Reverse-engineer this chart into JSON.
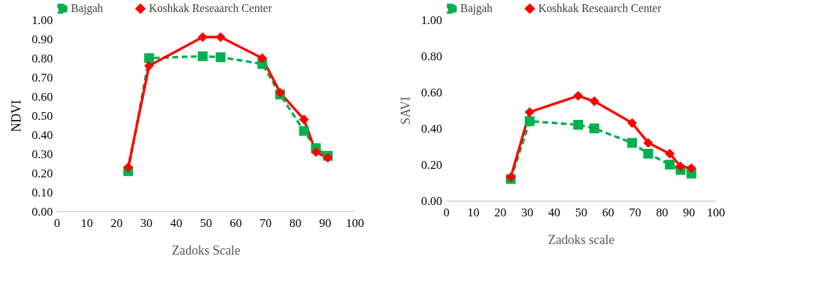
{
  "chart_data": [
    {
      "type": "line",
      "xlabel": "Zadoks Scale",
      "ylabel": "NDVI",
      "x": [
        24,
        31,
        49,
        55,
        69,
        75,
        83,
        87,
        91
      ],
      "legend": "top",
      "grid": false,
      "xlim": [
        0,
        100
      ],
      "xticks": [
        0,
        10,
        20,
        30,
        40,
        50,
        60,
        70,
        80,
        90,
        100
      ],
      "ylim": [
        0,
        1
      ],
      "yticks": [
        {
          "value": 0,
          "label": "0.00"
        },
        {
          "value": 0.1,
          "label": "0.10"
        },
        {
          "value": 0.2,
          "label": "0.20"
        },
        {
          "value": 0.3,
          "label": "0.30"
        },
        {
          "value": 0.4,
          "label": "0.40"
        },
        {
          "value": 0.5,
          "label": "0.50"
        },
        {
          "value": 0.6,
          "label": "0.60"
        },
        {
          "value": 0.7,
          "label": "0.70"
        },
        {
          "value": 0.8,
          "label": "0.80"
        },
        {
          "value": 0.9,
          "label": "0.90"
        },
        {
          "value": 1,
          "label": "1.00"
        }
      ],
      "series": [
        {
          "name": "Bajgah",
          "color": "#00b050",
          "marker": "square",
          "line_style": "dashed",
          "values": [
            0.21,
            0.8,
            0.81,
            0.805,
            0.77,
            0.61,
            0.42,
            0.33,
            0.29
          ]
        },
        {
          "name": "Koshkak Reseaarch Center",
          "color": "#ff0000",
          "marker": "diamond",
          "line_style": "solid",
          "values": [
            0.23,
            0.76,
            0.91,
            0.91,
            0.8,
            0.62,
            0.48,
            0.31,
            0.28
          ]
        }
      ]
    },
    {
      "type": "line",
      "xlabel": "Zadoks scale",
      "ylabel": "SAVI",
      "x": [
        24,
        31,
        49,
        55,
        69,
        75,
        83,
        87,
        91
      ],
      "legend": "top",
      "grid": false,
      "xlim": [
        0,
        100
      ],
      "xticks": [
        0,
        10,
        20,
        30,
        40,
        50,
        60,
        70,
        80,
        90,
        100
      ],
      "ylim": [
        0,
        1
      ],
      "yticks": [
        {
          "value": 0,
          "label": "0.00"
        },
        {
          "value": 0.2,
          "label": "0.20"
        },
        {
          "value": 0.4,
          "label": "0.40"
        },
        {
          "value": 0.6,
          "label": "0.60"
        },
        {
          "value": 0.8,
          "label": "0.80"
        },
        {
          "value": 1,
          "label": "1.00"
        }
      ],
      "series": [
        {
          "name": "Bajgah",
          "color": "#00b050",
          "marker": "square",
          "line_style": "dashed",
          "values": [
            0.12,
            0.44,
            0.42,
            0.4,
            0.32,
            0.26,
            0.2,
            0.17,
            0.15
          ]
        },
        {
          "name": "Koshkak Reseaarch Center",
          "color": "#ff0000",
          "marker": "diamond",
          "line_style": "solid",
          "values": [
            0.13,
            0.49,
            0.58,
            0.55,
            0.43,
            0.32,
            0.26,
            0.19,
            0.18
          ]
        }
      ]
    }
  ]
}
